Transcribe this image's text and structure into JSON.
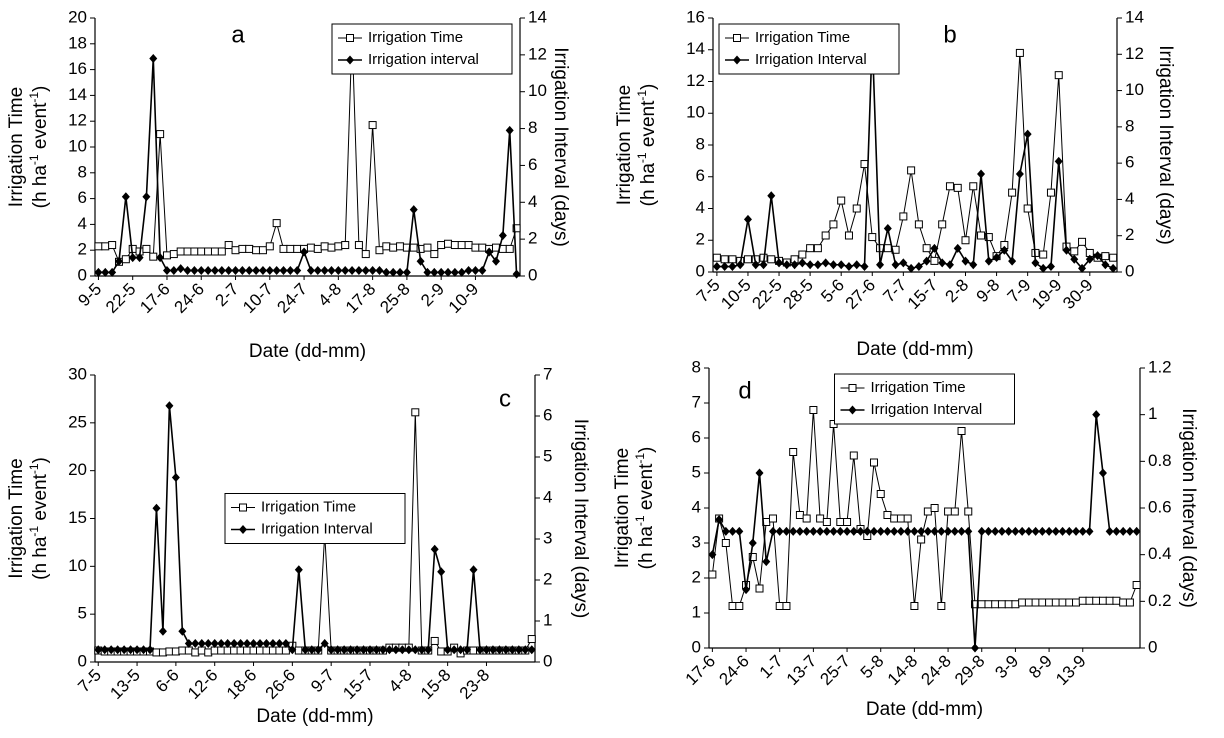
{
  "chart_data": [
    {
      "type": "line",
      "title": "a",
      "categories": [
        "9-5",
        null,
        null,
        null,
        null,
        "22-5",
        null,
        null,
        null,
        null,
        "17-6",
        null,
        null,
        null,
        null,
        "24-6",
        null,
        null,
        null,
        null,
        "2-7",
        null,
        null,
        null,
        null,
        "10-7",
        null,
        null,
        null,
        null,
        "24-7",
        null,
        null,
        null,
        null,
        "4-8",
        null,
        null,
        null,
        null,
        "17-8",
        null,
        null,
        null,
        null,
        "25-8",
        null,
        null,
        null,
        null,
        "2-9",
        null,
        null,
        null,
        null,
        "10-9",
        null,
        null,
        null,
        null,
        null,
        null
      ],
      "series": [
        {
          "name": "Irrigation Time",
          "color": "#000000",
          "marker": "square",
          "values": [
            2.3,
            2.3,
            2.4,
            1.1,
            1.3,
            2.1,
            1.9,
            2.1,
            1.5,
            11.0,
            1.6,
            1.7,
            1.9,
            1.9,
            1.9,
            1.9,
            1.9,
            1.9,
            1.9,
            2.4,
            2.0,
            2.1,
            2.1,
            2.0,
            2.0,
            2.3,
            4.1,
            2.1,
            2.1,
            2.1,
            2.1,
            2.2,
            2.1,
            2.3,
            2.2,
            2.3,
            2.4,
            18.8,
            2.4,
            1.7,
            11.7,
            2.0,
            2.3,
            2.2,
            2.3,
            2.2,
            2.2,
            2.1,
            2.2,
            1.7,
            2.4,
            2.5,
            2.4,
            2.4,
            2.4,
            2.2,
            2.2,
            2.1,
            2.2,
            2.1,
            2.1,
            3.7
          ]
        },
        {
          "name": "Irrigation interval",
          "color": "#000000",
          "marker": "diamond",
          "axis": "y2",
          "values": [
            0.2,
            0.2,
            0.2,
            0.8,
            4.3,
            1.0,
            1.0,
            4.3,
            11.8,
            1.0,
            0.3,
            0.3,
            0.4,
            0.3,
            0.3,
            0.3,
            0.3,
            0.3,
            0.3,
            0.3,
            0.3,
            0.3,
            0.3,
            0.3,
            0.3,
            0.3,
            0.3,
            0.3,
            0.3,
            0.3,
            1.3,
            0.3,
            0.3,
            0.3,
            0.3,
            0.3,
            0.3,
            0.3,
            0.3,
            0.3,
            0.3,
            0.3,
            0.2,
            0.2,
            0.2,
            0.2,
            3.6,
            0.8,
            0.2,
            0.2,
            0.2,
            0.2,
            0.2,
            0.2,
            0.3,
            0.3,
            0.3,
            1.3,
            0.8,
            2.2,
            7.9,
            0.1
          ]
        }
      ],
      "xlabel": "Date (dd-mm)",
      "ylabel": [
        "Irrigation Time",
        "(h ha",
        "-1",
        " event",
        "-1",
        ")"
      ],
      "y2label": "Irrigation Interval (days)",
      "ylim": [
        0,
        20
      ],
      "yticks": [
        0,
        2,
        4,
        6,
        8,
        10,
        12,
        14,
        16,
        18,
        20
      ],
      "y2lim": [
        0,
        14
      ],
      "y2ticks": [
        0,
        2,
        4,
        6,
        8,
        10,
        12,
        14
      ],
      "legend": "upper right"
    },
    {
      "type": "line",
      "title": "b",
      "categories": [
        "7-5",
        null,
        null,
        null,
        "10-5",
        null,
        null,
        null,
        "22-5",
        null,
        null,
        null,
        "28-5",
        null,
        null,
        null,
        "5-6",
        null,
        null,
        null,
        "27-6",
        null,
        null,
        null,
        "7-7",
        null,
        null,
        null,
        "15-7",
        null,
        null,
        null,
        "2-8",
        null,
        null,
        null,
        "9-8",
        null,
        null,
        null,
        "7-9",
        null,
        null,
        null,
        "19-9",
        null,
        null,
        null,
        "30-9",
        null,
        null,
        null
      ],
      "series": [
        {
          "name": "Irrigation Time",
          "color": "#000000",
          "marker": "square",
          "values": [
            0.9,
            0.8,
            0.8,
            0.7,
            0.8,
            0.8,
            0.9,
            0.8,
            0.7,
            0.6,
            0.8,
            1.1,
            1.5,
            1.5,
            2.3,
            3.0,
            4.5,
            2.3,
            4.0,
            6.8,
            2.2,
            1.5,
            1.5,
            1.4,
            3.5,
            6.4,
            3.0,
            1.5,
            0.7,
            3.0,
            5.4,
            5.3,
            2.0,
            5.4,
            2.3,
            2.2,
            1.0,
            1.7,
            5.0,
            13.8,
            4.0,
            1.2,
            1.1,
            5.0,
            12.4,
            1.6,
            1.3,
            1.9,
            1.2,
            0.9,
            1.0,
            0.9
          ]
        },
        {
          "name": "Irrigation Interval",
          "color": "#000000",
          "marker": "diamond",
          "axis": "y2",
          "values": [
            0.3,
            0.3,
            0.3,
            0.4,
            2.9,
            0.4,
            0.4,
            4.2,
            0.5,
            0.4,
            0.4,
            0.5,
            0.4,
            0.4,
            0.5,
            0.4,
            0.4,
            0.3,
            0.4,
            0.3,
            12.9,
            0.4,
            2.4,
            0.4,
            0.5,
            0.2,
            0.3,
            0.6,
            1.3,
            0.5,
            0.4,
            1.3,
            0.6,
            0.4,
            5.4,
            0.6,
            0.8,
            1.2,
            0.6,
            5.4,
            7.6,
            0.5,
            0.2,
            0.3,
            6.1,
            1.2,
            0.7,
            0.2,
            0.7,
            0.9,
            0.4,
            0.2
          ]
        }
      ],
      "xlabel": "Date (dd-mm)",
      "ylabel": [
        "Irrigation Time",
        "(h ha",
        "-1",
        " event",
        "-1",
        ")"
      ],
      "y2label": "Irrigation Interval (days)",
      "ylim": [
        0,
        16
      ],
      "yticks": [
        0,
        2,
        4,
        6,
        8,
        10,
        12,
        14,
        16
      ],
      "y2lim": [
        0,
        14
      ],
      "y2ticks": [
        0,
        2,
        4,
        6,
        8,
        10,
        12,
        14
      ],
      "legend": "upper left"
    },
    {
      "type": "line",
      "title": "c",
      "categories": [
        "7-5",
        null,
        null,
        null,
        null,
        null,
        "13-5",
        null,
        null,
        null,
        null,
        null,
        "6-6",
        null,
        null,
        null,
        null,
        null,
        "12-6",
        null,
        null,
        null,
        null,
        null,
        "18-6",
        null,
        null,
        null,
        null,
        null,
        "26-6",
        null,
        null,
        null,
        null,
        null,
        "9-7",
        null,
        null,
        null,
        null,
        null,
        "15-7",
        null,
        null,
        null,
        null,
        null,
        "4-8",
        null,
        null,
        null,
        null,
        null,
        "15-8",
        null,
        null,
        null,
        null,
        null,
        "23-8",
        null,
        null,
        null,
        null,
        null,
        null,
        null
      ],
      "series": [
        {
          "name": "Irrigation Time",
          "color": "#000000",
          "marker": "square",
          "values": [
            1.2,
            1.1,
            1.1,
            1.1,
            1.1,
            1.1,
            1.1,
            1.1,
            1.1,
            1.0,
            1.0,
            1.1,
            1.1,
            1.2,
            1.2,
            1.0,
            1.2,
            1.0,
            1.2,
            1.2,
            1.2,
            1.2,
            1.2,
            1.2,
            1.2,
            1.2,
            1.2,
            1.2,
            1.2,
            1.2,
            1.7,
            1.2,
            1.2,
            1.2,
            1.2,
            13.4,
            1.2,
            1.2,
            1.2,
            1.2,
            1.2,
            1.2,
            1.2,
            1.2,
            1.2,
            1.5,
            1.5,
            1.5,
            1.5,
            26.1,
            1.2,
            1.2,
            2.2,
            1.1,
            1.1,
            1.5,
            0.9,
            1.2,
            1.2,
            1.2,
            1.2,
            1.2,
            1.2,
            1.2,
            1.2,
            1.2,
            1.2,
            2.4
          ]
        },
        {
          "name": "Irrigation Interval",
          "color": "#000000",
          "marker": "diamond",
          "axis": "y2",
          "values": [
            0.3,
            0.3,
            0.3,
            0.3,
            0.3,
            0.3,
            0.3,
            0.3,
            0.3,
            3.75,
            0.75,
            6.25,
            4.5,
            0.75,
            0.45,
            0.45,
            0.45,
            0.45,
            0.45,
            0.45,
            0.45,
            0.45,
            0.45,
            0.45,
            0.45,
            0.45,
            0.45,
            0.45,
            0.45,
            0.45,
            0.3,
            2.25,
            0.3,
            0.3,
            0.3,
            0.45,
            0.3,
            0.3,
            0.3,
            0.3,
            0.3,
            0.3,
            0.3,
            0.3,
            0.3,
            0.3,
            0.3,
            0.3,
            0.3,
            0.3,
            0.3,
            0.3,
            2.75,
            2.2,
            0.3,
            0.3,
            0.3,
            0.3,
            2.25,
            0.3,
            0.3,
            0.3,
            0.3,
            0.3,
            0.3,
            0.3,
            0.3,
            0.3
          ]
        }
      ],
      "xlabel": "Date (dd-mm)",
      "ylabel": [
        "Irrigation Time",
        "(h ha",
        "-1",
        " event",
        "-1",
        ")"
      ],
      "y2label": "Irrigation Interval (days)",
      "ylim": [
        0,
        30
      ],
      "yticks": [
        0,
        5,
        10,
        15,
        20,
        25,
        30
      ],
      "y2lim": [
        0,
        7
      ],
      "y2ticks": [
        0,
        1,
        2,
        3,
        4,
        5,
        6,
        7
      ],
      "legend": "center"
    },
    {
      "type": "line",
      "title": "d",
      "categories": [
        "17-6",
        null,
        null,
        null,
        null,
        "24-6",
        null,
        null,
        null,
        null,
        "1-7",
        null,
        null,
        null,
        null,
        "13-7",
        null,
        null,
        null,
        null,
        "25-7",
        null,
        null,
        null,
        null,
        "5-8",
        null,
        null,
        null,
        null,
        "14-8",
        null,
        null,
        null,
        null,
        "24-8",
        null,
        null,
        null,
        null,
        "29-8",
        null,
        null,
        null,
        null,
        "3-9",
        null,
        null,
        null,
        null,
        "8-9",
        null,
        null,
        null,
        null,
        "13-9",
        null,
        null,
        null,
        null,
        null,
        null,
        null,
        null
      ],
      "series": [
        {
          "name": "Irrigation Time",
          "color": "#000000",
          "marker": "square",
          "values": [
            2.1,
            3.7,
            3.0,
            1.2,
            1.2,
            1.8,
            2.6,
            1.7,
            3.6,
            3.7,
            1.2,
            1.2,
            5.6,
            3.8,
            3.7,
            6.8,
            3.7,
            3.6,
            6.4,
            3.6,
            3.6,
            5.5,
            3.4,
            3.2,
            5.3,
            4.4,
            3.8,
            3.7,
            3.7,
            3.7,
            1.2,
            3.1,
            3.9,
            4.0,
            1.2,
            3.9,
            3.9,
            6.2,
            3.9,
            1.25,
            1.25,
            1.25,
            1.25,
            1.25,
            1.25,
            1.25,
            1.3,
            1.3,
            1.3,
            1.3,
            1.3,
            1.3,
            1.3,
            1.3,
            1.3,
            1.35,
            1.35,
            1.35,
            1.35,
            1.35,
            1.35,
            1.3,
            1.3,
            1.8
          ]
        },
        {
          "name": "Irrigation Interval",
          "color": "#000000",
          "marker": "diamond",
          "axis": "y2",
          "values": [
            0.4,
            0.55,
            0.5,
            0.5,
            0.5,
            0.25,
            0.45,
            0.75,
            0.37,
            0.5,
            0.5,
            0.5,
            0.5,
            0.5,
            0.5,
            0.5,
            0.5,
            0.5,
            0.5,
            0.5,
            0.5,
            0.5,
            0.5,
            0.5,
            0.5,
            0.5,
            0.5,
            0.5,
            0.5,
            0.5,
            0.5,
            0.5,
            0.5,
            0.5,
            0.5,
            0.5,
            0.5,
            0.5,
            0.5,
            0,
            0.5,
            0.5,
            0.5,
            0.5,
            0.5,
            0.5,
            0.5,
            0.5,
            0.5,
            0.5,
            0.5,
            0.5,
            0.5,
            0.5,
            0.5,
            0.5,
            0.5,
            1.0,
            0.75,
            0.5,
            0.5,
            0.5,
            0.5,
            0.5
          ]
        }
      ],
      "xlabel": "Date (dd-mm)",
      "ylabel": [
        "Irrigation Time",
        "(h ha",
        "-1",
        " event",
        "-1",
        ")"
      ],
      "y2label": "Irrigation Interval (days)",
      "ylim": [
        0,
        8
      ],
      "yticks": [
        0,
        1,
        2,
        3,
        4,
        5,
        6,
        7,
        8
      ],
      "y2lim": [
        0,
        1.2
      ],
      "y2ticks": [
        0,
        0.2,
        0.4,
        0.6,
        0.8,
        1,
        1.2
      ],
      "legend": "upper center"
    }
  ]
}
